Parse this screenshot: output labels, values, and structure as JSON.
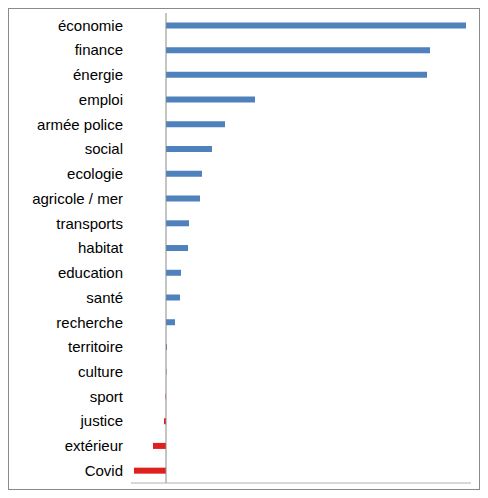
{
  "chart_data": {
    "type": "bar",
    "orientation": "horizontal",
    "categories": [
      "économie",
      "finance",
      "énergie",
      "emploi",
      "armée police",
      "social",
      "ecologie",
      "agricole / mer",
      "transports",
      "habitat",
      "education",
      "santé",
      "recherche",
      "territoire",
      "culture",
      "sport",
      "justice",
      "extérieur",
      "Covid"
    ],
    "values": [
      30,
      26.4,
      26.1,
      8.9,
      5.9,
      4.6,
      3.6,
      3.4,
      2.3,
      2.2,
      1.5,
      1.4,
      0.9,
      0.1,
      0.05,
      -0.05,
      -0.2,
      -1.3,
      -3.2
    ],
    "colors": [
      "#4f81bd",
      "#4f81bd",
      "#4f81bd",
      "#4f81bd",
      "#4f81bd",
      "#4f81bd",
      "#4f81bd",
      "#4f81bd",
      "#4f81bd",
      "#4f81bd",
      "#4f81bd",
      "#4f81bd",
      "#4f81bd",
      "#4f81bd",
      "#4f81bd",
      "#e02020",
      "#e02020",
      "#e02020",
      "#e02020"
    ],
    "xlim": [
      -3.5,
      30.5
    ],
    "tick_labels": "y",
    "grid": false
  }
}
